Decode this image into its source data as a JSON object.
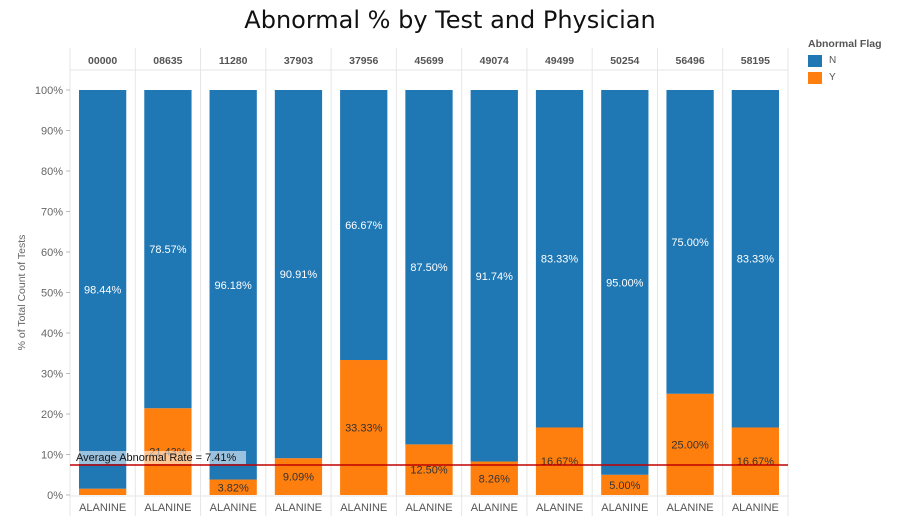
{
  "chart_data": {
    "type": "bar",
    "stacked": true,
    "title": "Abnormal % by Test and Physician",
    "xlabel": "",
    "ylabel": "% of Total Count of Tests",
    "ylim": [
      0,
      100
    ],
    "yticks": [
      "0%",
      "10%",
      "20%",
      "30%",
      "40%",
      "50%",
      "60%",
      "70%",
      "80%",
      "90%",
      "100%"
    ],
    "ytick_values": [
      0,
      10,
      20,
      30,
      40,
      50,
      60,
      70,
      80,
      90,
      100
    ],
    "grid": true,
    "column_headers": [
      "00000",
      "08635",
      "11280",
      "37903",
      "37956",
      "45699",
      "49074",
      "49499",
      "50254",
      "56496",
      "58195"
    ],
    "categories": [
      "ALANINE",
      "ALANINE",
      "ALANINE",
      "ALANINE",
      "ALANINE",
      "ALANINE",
      "ALANINE",
      "ALANINE",
      "ALANINE",
      "ALANINE",
      "ALANINE"
    ],
    "series": [
      {
        "name": "Y",
        "color": "#FF7F0E",
        "values": [
          1.56,
          21.43,
          3.82,
          9.09,
          33.33,
          12.5,
          8.26,
          16.67,
          5.0,
          25.0,
          16.67
        ],
        "labels": [
          "",
          "21.43%",
          "3.82%",
          "9.09%",
          "33.33%",
          "12.50%",
          "8.26%",
          "16.67%",
          "5.00%",
          "25.00%",
          "16.67%"
        ]
      },
      {
        "name": "N",
        "color": "#1F77B4",
        "values": [
          98.44,
          78.57,
          96.18,
          90.91,
          66.67,
          87.5,
          91.74,
          83.33,
          95.0,
          75.0,
          83.33
        ],
        "labels": [
          "98.44%",
          "78.57%",
          "96.18%",
          "90.91%",
          "66.67%",
          "87.50%",
          "91.74%",
          "83.33%",
          "95.00%",
          "75.00%",
          "83.33%"
        ]
      }
    ],
    "reference_line": {
      "value": 7.41,
      "label": "Average Abnormal Rate = 7.41%",
      "color": "#C00000"
    },
    "legend": {
      "title": "Abnormal Flag",
      "position": "top-right",
      "entries": [
        {
          "label": "N",
          "color": "#1F77B4"
        },
        {
          "label": "Y",
          "color": "#FF7F0E"
        }
      ]
    }
  }
}
